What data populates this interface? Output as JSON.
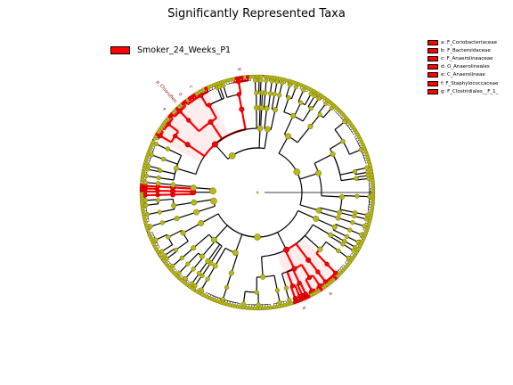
{
  "title": "Significantly Represented Taxa",
  "colors": {
    "highlight": "#ff0000",
    "node": "#b8b81a",
    "node_stroke": "#6a6a00",
    "shade": "#ffb6b6"
  },
  "legend_main": {
    "label": "Smoker_24_Weeks_P1",
    "color": "#ff0000"
  },
  "legend_side": [
    {
      "label": "a: F_Coriobacteriaceae",
      "color": "#ff0000"
    },
    {
      "label": "b: F_Bacteroidaceae",
      "color": "#ff0000"
    },
    {
      "label": "c: F_Anaerolineaceae",
      "color": "#ff0000"
    },
    {
      "label": "d: O_Anaerolineales",
      "color": "#ff0000"
    },
    {
      "label": "e: C_Anaerolineae",
      "color": "#ff0000"
    },
    {
      "label": "f: F_Staphylococcaceae",
      "color": "#ff0000"
    },
    {
      "label": "g: F_Clostridiales__F_1_",
      "color": "#ff0000"
    }
  ],
  "clade_labels": [
    {
      "text": "p_Chloroflexi",
      "angle": 228
    },
    {
      "text": "a",
      "angle": 54
    },
    {
      "text": "b",
      "angle": 68
    },
    {
      "text": "e",
      "angle": 222
    },
    {
      "text": "d",
      "angle": 232
    },
    {
      "text": "c",
      "angle": 238
    },
    {
      "text": "g",
      "angle": 262
    }
  ]
}
